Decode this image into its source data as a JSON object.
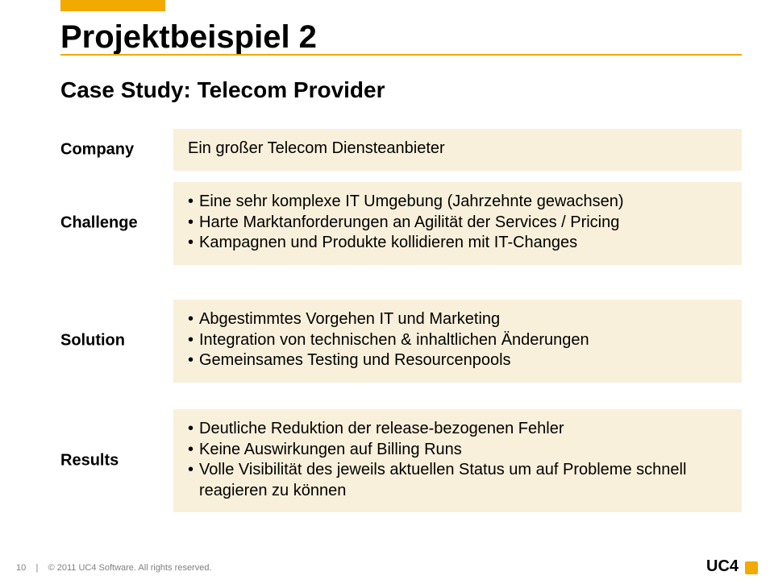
{
  "colors": {
    "accent": "#f2a900",
    "row_bg": "#f9f0db",
    "text": "#000000",
    "footer_text": "#808080",
    "bg": "#ffffff"
  },
  "title": "Projektbeispiel 2",
  "subtitle": "Case Study: Telecom Provider",
  "rows": {
    "company": {
      "label": "Company",
      "items": [
        "Ein großer Telecom Diensteanbieter"
      ]
    },
    "challenge": {
      "label": "Challenge",
      "items": [
        "Eine sehr komplexe IT Umgebung (Jahrzehnte gewachsen)",
        "Harte Marktanforderungen an Agilität der Services / Pricing",
        "Kampagnen und Produkte kollidieren mit IT-Changes"
      ]
    },
    "solution": {
      "label": "Solution",
      "items": [
        "Abgestimmtes Vorgehen IT und Marketing",
        "Integration von technischen & inhaltlichen Änderungen",
        "Gemeinsames Testing und Resourcenpools"
      ]
    },
    "results": {
      "label": "Results",
      "items": [
        "Deutliche Reduktion der release-bezogenen Fehler",
        "Keine Auswirkungen auf Billing Runs",
        "Volle Visibilität des jeweils aktuellen Status um auf Probleme schnell reagieren zu können"
      ]
    }
  },
  "footer": {
    "page": "10",
    "sep": "|",
    "copyright": "© 2011 UC4 Software.  All rights reserved."
  },
  "logo": {
    "text": "UC4"
  }
}
